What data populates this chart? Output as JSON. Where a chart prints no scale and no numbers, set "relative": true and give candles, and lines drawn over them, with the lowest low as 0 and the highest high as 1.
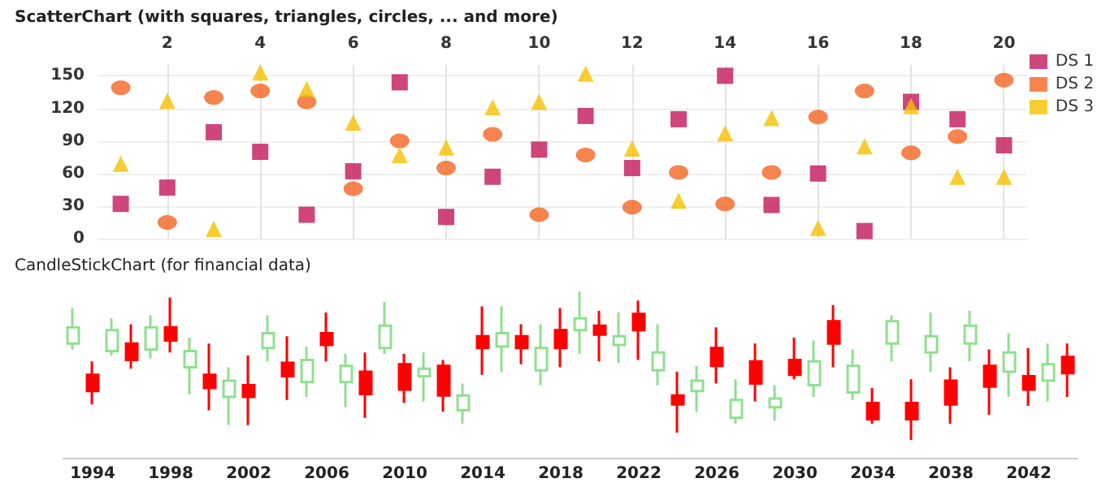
{
  "chart_data": [
    {
      "type": "scatter",
      "title": "ScatterChart (with squares, triangles, circles, ... and more)",
      "xlim": [
        0.5,
        20.5
      ],
      "xticks": [
        2,
        4,
        6,
        8,
        10,
        12,
        14,
        16,
        18,
        20
      ],
      "ylim": [
        0,
        160
      ],
      "yticks": [
        0,
        30,
        60,
        90,
        120,
        150
      ],
      "grid": true,
      "legend": "top right",
      "x": [
        1,
        2,
        3,
        4,
        5,
        6,
        7,
        8,
        9,
        10,
        11,
        12,
        13,
        14,
        15,
        16,
        17,
        18,
        19,
        20
      ],
      "series": [
        {
          "name": "DS 1",
          "color": "#c2185b",
          "marker": "square",
          "values": [
            32,
            47,
            98,
            80,
            22,
            62,
            144,
            20,
            57,
            82,
            113,
            65,
            110,
            150,
            31,
            60,
            7,
            126,
            110,
            86
          ]
        },
        {
          "name": "DS 2",
          "color": "#f26522",
          "marker": "circle",
          "values": [
            139,
            15,
            130,
            136,
            126,
            46,
            90,
            65,
            96,
            22,
            77,
            29,
            61,
            32,
            61,
            112,
            136,
            79,
            94,
            146
          ]
        },
        {
          "name": "DS 3",
          "color": "#f5c000",
          "marker": "triangle",
          "values": [
            69,
            127,
            9,
            153,
            138,
            107,
            77,
            84,
            121,
            126,
            152,
            83,
            35,
            97,
            111,
            10,
            85,
            122,
            57,
            57
          ]
        }
      ]
    },
    {
      "type": "candlestick",
      "title": "CandleStickChart (for financial data)",
      "relative": true,
      "categories": [
        null,
        "1994",
        null,
        null,
        null,
        "1998",
        null,
        null,
        null,
        "2002",
        null,
        null,
        null,
        "2006",
        null,
        null,
        null,
        "2010",
        null,
        null,
        null,
        "2014",
        null,
        null,
        null,
        "2018",
        null,
        null,
        null,
        "2022",
        null,
        null,
        null,
        "2026",
        null,
        null,
        null,
        "2030",
        null,
        null,
        null,
        "2034",
        null,
        null,
        null,
        "2038",
        null,
        null,
        null,
        "2042",
        null,
        null
      ],
      "ohlc": [
        [
          0.65,
          0.89,
          0.61,
          0.76
        ],
        [
          0.44,
          0.53,
          0.24,
          0.33
        ],
        [
          0.6,
          0.82,
          0.57,
          0.74
        ],
        [
          0.65,
          0.78,
          0.48,
          0.54
        ],
        [
          0.61,
          0.84,
          0.55,
          0.76
        ],
        [
          0.76,
          0.96,
          0.59,
          0.67
        ],
        [
          0.49,
          0.69,
          0.31,
          0.6
        ],
        [
          0.44,
          0.65,
          0.2,
          0.35
        ],
        [
          0.29,
          0.49,
          0.1,
          0.4
        ],
        [
          0.37,
          0.57,
          0.1,
          0.29
        ],
        [
          0.62,
          0.84,
          0.53,
          0.72
        ],
        [
          0.52,
          0.7,
          0.27,
          0.43
        ],
        [
          0.39,
          0.63,
          0.29,
          0.54
        ],
        [
          0.72,
          0.86,
          0.53,
          0.64
        ],
        [
          0.39,
          0.58,
          0.22,
          0.5
        ],
        [
          0.46,
          0.59,
          0.15,
          0.31
        ],
        [
          0.62,
          0.93,
          0.58,
          0.77
        ],
        [
          0.51,
          0.58,
          0.25,
          0.34
        ],
        [
          0.43,
          0.59,
          0.26,
          0.48
        ],
        [
          0.5,
          0.54,
          0.19,
          0.3
        ],
        [
          0.2,
          0.38,
          0.11,
          0.3
        ],
        [
          0.7,
          0.9,
          0.44,
          0.62
        ],
        [
          0.63,
          0.9,
          0.46,
          0.72
        ],
        [
          0.7,
          0.78,
          0.51,
          0.62
        ],
        [
          0.47,
          0.78,
          0.37,
          0.62
        ],
        [
          0.74,
          0.89,
          0.49,
          0.62
        ],
        [
          0.74,
          1.0,
          0.58,
          0.82
        ],
        [
          0.77,
          0.87,
          0.53,
          0.71
        ],
        [
          0.64,
          0.86,
          0.52,
          0.7
        ],
        [
          0.85,
          0.94,
          0.54,
          0.74
        ],
        [
          0.47,
          0.78,
          0.37,
          0.59
        ],
        [
          0.3,
          0.46,
          0.05,
          0.24
        ],
        [
          0.33,
          0.5,
          0.19,
          0.4
        ],
        [
          0.62,
          0.76,
          0.38,
          0.5
        ],
        [
          0.15,
          0.41,
          0.11,
          0.27
        ],
        [
          0.53,
          0.65,
          0.26,
          0.38
        ],
        [
          0.22,
          0.37,
          0.13,
          0.28
        ],
        [
          0.54,
          0.69,
          0.41,
          0.44
        ],
        [
          0.37,
          0.67,
          0.29,
          0.53
        ],
        [
          0.8,
          0.91,
          0.49,
          0.65
        ],
        [
          0.32,
          0.61,
          0.27,
          0.5
        ],
        [
          0.25,
          0.35,
          0.11,
          0.14
        ],
        [
          0.65,
          0.84,
          0.53,
          0.8
        ],
        [
          0.25,
          0.41,
          0,
          0.14
        ],
        [
          0.59,
          0.86,
          0.46,
          0.7
        ],
        [
          0.4,
          0.49,
          0.11,
          0.24
        ],
        [
          0.65,
          0.87,
          0.53,
          0.77
        ],
        [
          0.5,
          0.61,
          0.17,
          0.36
        ],
        [
          0.46,
          0.72,
          0.29,
          0.59
        ],
        [
          0.43,
          0.62,
          0.23,
          0.34
        ],
        [
          0.4,
          0.65,
          0.26,
          0.51
        ],
        [
          0.56,
          0.65,
          0.29,
          0.45
        ]
      ],
      "colors": [
        "#8fe08f",
        "#ff0000",
        "#8fe08f",
        "#ff0000",
        "#8fe08f",
        "#ff0000",
        "#8fe08f",
        "#ff0000",
        "#8fe08f",
        "#ff0000",
        "#8fe08f",
        "#ff0000",
        "#8fe08f",
        "#ff0000",
        "#8fe08f",
        "#ff0000",
        "#8fe08f",
        "#ff0000",
        "#8fe08f",
        "#ff0000",
        "#8fe08f",
        "#ff0000",
        "#8fe08f",
        "#ff0000",
        "#8fe08f",
        "#ff0000",
        "#8fe08f",
        "#ff0000",
        "#8fe08f",
        "#ff0000",
        "#8fe08f",
        "#ff0000",
        "#8fe08f",
        "#ff0000",
        "#8fe08f",
        "#ff0000",
        "#8fe08f",
        "#ff0000",
        "#8fe08f",
        "#ff0000",
        "#8fe08f",
        "#ff0000",
        "#8fe08f",
        "#ff0000",
        "#8fe08f",
        "#ff0000",
        "#8fe08f",
        "#ff0000",
        "#8fe08f",
        "#ff0000",
        "#8fe08f",
        "#ff0000"
      ]
    }
  ]
}
